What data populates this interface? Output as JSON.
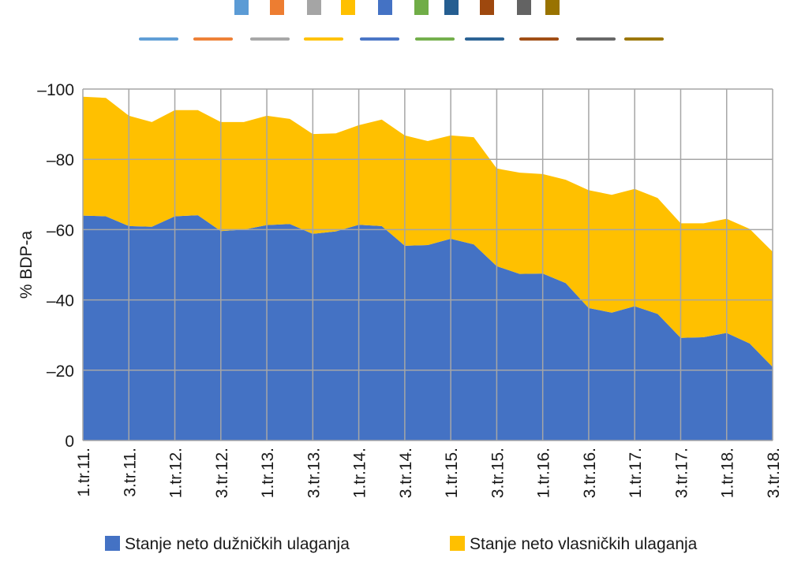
{
  "chart_data": {
    "type": "area",
    "stacked": true,
    "title": "",
    "xlabel": "",
    "ylabel": "% BDP-a",
    "ylim": [
      -100,
      0
    ],
    "y_reversed": true,
    "y_ticks": [
      0,
      -20,
      -40,
      -60,
      -80,
      -100
    ],
    "y_tick_labels": [
      "0",
      "–20",
      "–40",
      "–60",
      "–80",
      "–100"
    ],
    "grid": true,
    "categories": [
      "1.tr.11.",
      "2.tr.11.",
      "3.tr.11.",
      "4.tr.11.",
      "1.tr.12.",
      "2.tr.12.",
      "3.tr.12.",
      "4.tr.12.",
      "1.tr.13.",
      "2.tr.13.",
      "3.tr.13.",
      "4.tr.13.",
      "1.tr.14.",
      "2.tr.14.",
      "3.tr.14.",
      "4.tr.14.",
      "1.tr.15.",
      "2.tr.15.",
      "3.tr.15.",
      "4.tr.15.",
      "1.tr.16.",
      "2.tr.16.",
      "3.tr.16.",
      "4.tr.16.",
      "1.tr.17.",
      "2.tr.17.",
      "3.tr.17.",
      "4.tr.17.",
      "1.tr.18.",
      "2.tr.18.",
      "3.tr.18."
    ],
    "x_tick_labels_shown": [
      "1.tr.11.",
      "3.tr.11.",
      "1.tr.12.",
      "3.tr.12.",
      "1.tr.13.",
      "3.tr.13.",
      "1.tr.14.",
      "3.tr.14.",
      "1.tr.15.",
      "3.tr.15.",
      "1.tr.16.",
      "3.tr.16.",
      "1.tr.17.",
      "3.tr.17.",
      "1.tr.18.",
      "3.tr.18."
    ],
    "series": [
      {
        "name": "Stanje neto dužničkih ulaganja",
        "color": "#4472C4",
        "values": [
          -64.0,
          -63.8,
          -61.0,
          -60.8,
          -63.8,
          -64.1,
          -59.6,
          -60.0,
          -61.3,
          -61.6,
          -58.8,
          -59.5,
          -61.4,
          -61.0,
          -55.4,
          -55.6,
          -57.4,
          -55.8,
          -49.6,
          -47.4,
          -47.5,
          -44.8,
          -37.7,
          -36.4,
          -38.2,
          -36.0,
          -29.2,
          -29.4,
          -30.6,
          -27.6,
          -20.9
        ]
      },
      {
        "name": "Stanje neto vlasničkih ulaganja",
        "color": "#FFC000",
        "values": [
          -33.8,
          -33.7,
          -31.4,
          -29.8,
          -30.2,
          -29.9,
          -31.0,
          -30.6,
          -31.1,
          -29.9,
          -28.4,
          -27.9,
          -28.3,
          -30.3,
          -31.4,
          -29.6,
          -29.4,
          -30.5,
          -27.8,
          -28.8,
          -28.3,
          -29.4,
          -33.5,
          -33.5,
          -33.4,
          -33.0,
          -32.6,
          -32.4,
          -32.5,
          -32.6,
          -32.8
        ]
      }
    ],
    "legend": {
      "placement": "bottom",
      "entries": [
        {
          "label": "Stanje neto dužničkih ulaganja",
          "color": "#4472C4"
        },
        {
          "label": "Stanje neto vlasničkih ulaganja",
          "color": "#FFC000"
        }
      ]
    },
    "empty_legend_swatches": {
      "placement": "top",
      "square_colors": [
        "#5B9BD5",
        "#ED7D31",
        "#A5A5A5",
        "#FFC000",
        "#4472C4",
        "#70AD47",
        "#255E91",
        "#9E480E",
        "#636363",
        "#997300"
      ],
      "line_colors": [
        "#5B9BD5",
        "#ED7D31",
        "#A5A5A5",
        "#FFC000",
        "#4472C4",
        "#70AD47",
        "#255E91",
        "#9E480E",
        "#636363",
        "#997300"
      ]
    },
    "grid_color": "#A6A6A6"
  }
}
